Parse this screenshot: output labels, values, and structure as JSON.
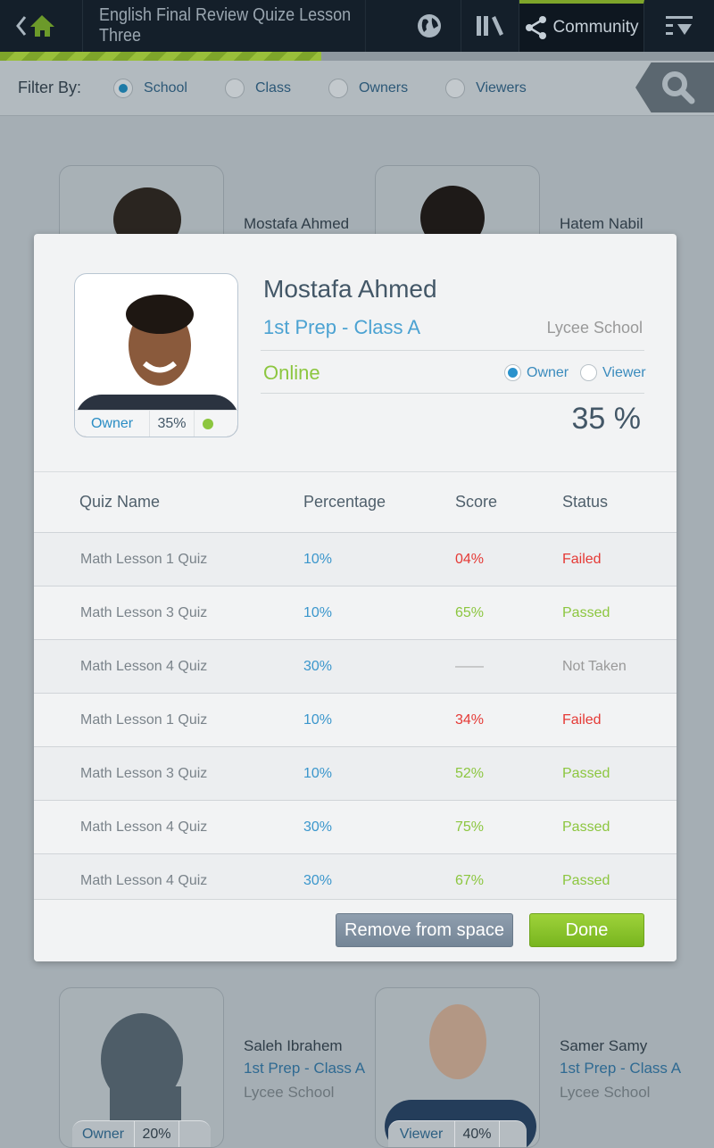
{
  "header": {
    "title": "English Final Review Quize Lesson Three",
    "community_label": "Community",
    "progress_percent": 45
  },
  "filter": {
    "label": "Filter By:",
    "options": [
      {
        "label": "School",
        "selected": true
      },
      {
        "label": "Class",
        "selected": false
      },
      {
        "label": "Owners",
        "selected": false
      },
      {
        "label": "Viewers",
        "selected": false
      }
    ]
  },
  "cards": [
    {
      "name": "Mostafa Ahmed"
    },
    {
      "name": "Hatem Nabil"
    },
    {
      "name": "Saleh Ibrahem",
      "class": "1st Prep - Class A",
      "school": "Lycee School",
      "role": "Owner",
      "percent": "20%"
    },
    {
      "name": "Samer Samy",
      "class": "1st Prep - Class A",
      "school": "Lycee School",
      "role": "Viewer",
      "percent": "40%"
    }
  ],
  "modal": {
    "name": "Mostafa Ahmed",
    "class": "1st Prep - Class A",
    "school": "Lycee School",
    "status": "Online",
    "role": "Owner",
    "role_percent": "35%",
    "role_options": [
      "Owner",
      "Viewer"
    ],
    "selected_role": "Owner",
    "percent": "35 %",
    "columns": [
      "Quiz Name",
      "Percentage",
      "Score",
      "Status"
    ],
    "rows": [
      {
        "quiz": "Math Lesson 1 Quiz",
        "percentage": "10%",
        "score": "04%",
        "status": "Failed"
      },
      {
        "quiz": "Math Lesson 3 Quiz",
        "percentage": "10%",
        "score": "65%",
        "status": "Passed"
      },
      {
        "quiz": "Math Lesson 4 Quiz",
        "percentage": "30%",
        "score": "——",
        "status": "Not Taken"
      },
      {
        "quiz": "Math Lesson 1 Quiz",
        "percentage": "10%",
        "score": "34%",
        "status": "Failed"
      },
      {
        "quiz": "Math Lesson 3 Quiz",
        "percentage": "10%",
        "score": "52%",
        "status": "Passed"
      },
      {
        "quiz": "Math Lesson 4 Quiz",
        "percentage": "30%",
        "score": "75%",
        "status": "Passed"
      },
      {
        "quiz": "Math Lesson 4 Quiz",
        "percentage": "30%",
        "score": "67%",
        "status": "Passed"
      }
    ],
    "remove_label": "Remove from space",
    "done_label": "Done"
  },
  "colors": {
    "failed": "#e53935",
    "passed": "#8cc63f",
    "not_taken": "#999999",
    "accent": "#4ba2d2"
  }
}
